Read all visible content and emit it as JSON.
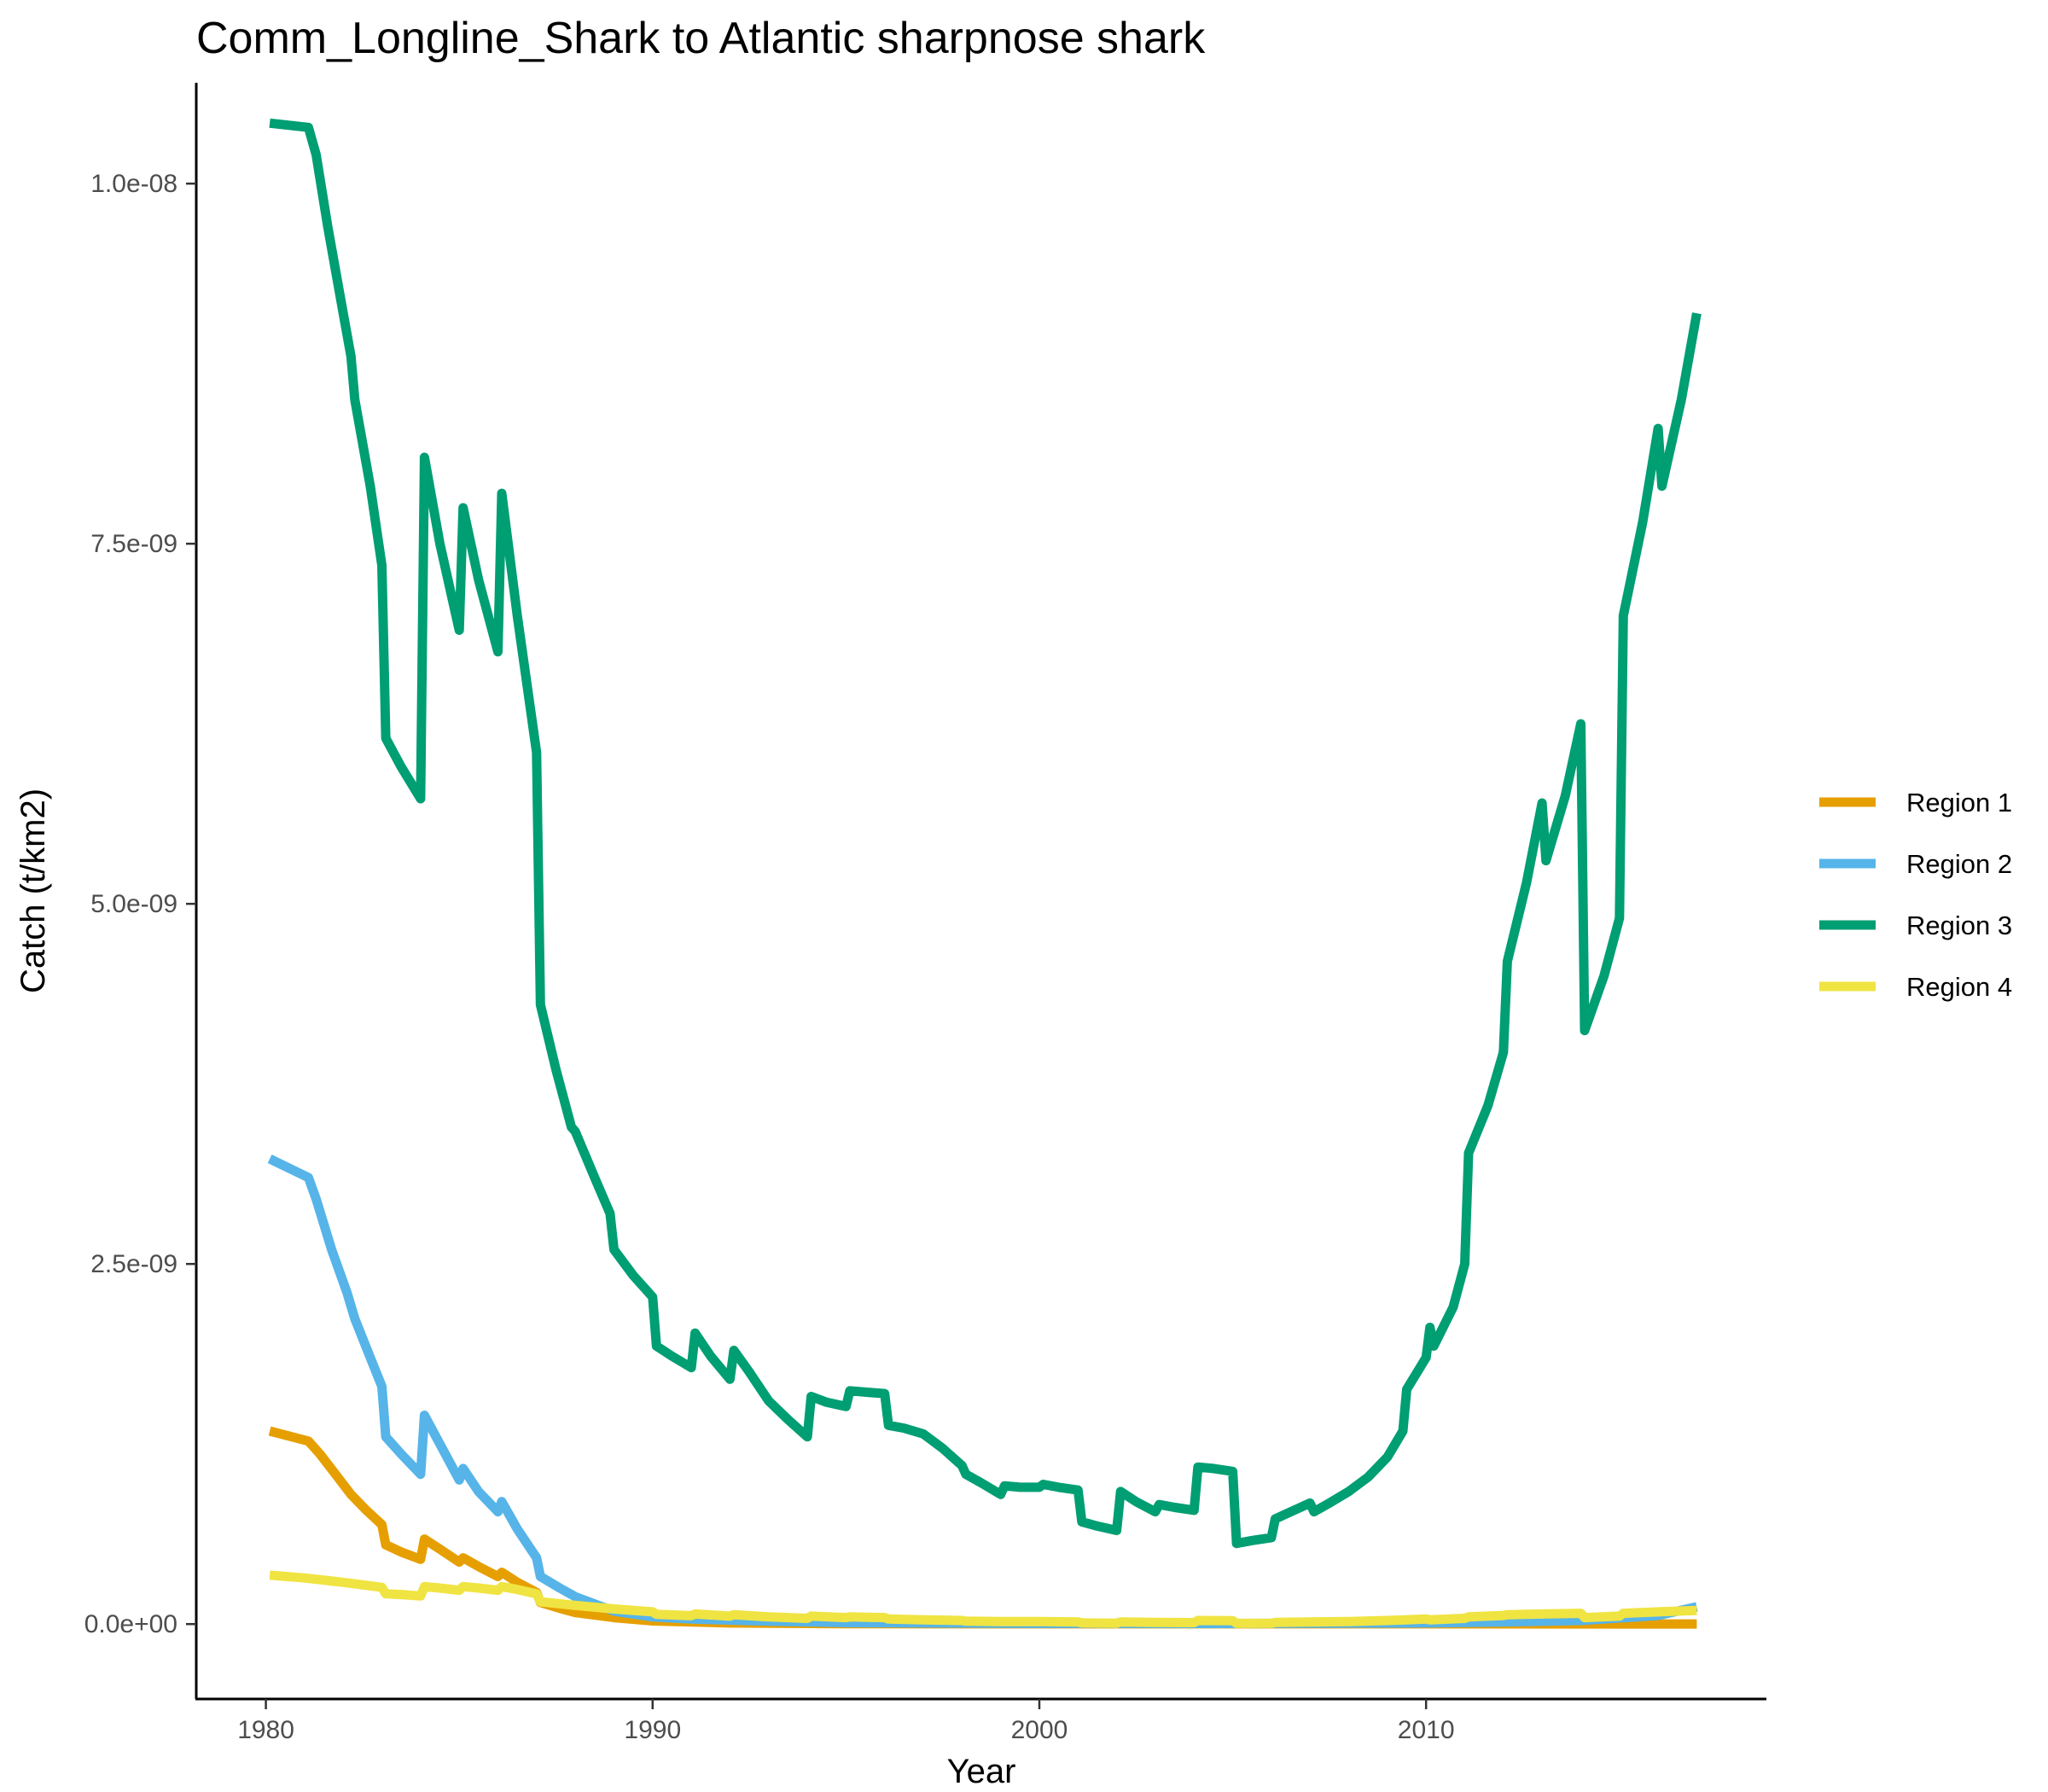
{
  "chart_data": {
    "type": "line",
    "title": "Comm_Longline_Shark to Atlantic sharpnose shark",
    "xlabel": "Year",
    "ylabel": "Catch (t/km2)",
    "xlim": [
      1978.2,
      2018.8
    ],
    "ylim": [
      -5.2e-10,
      1.07e-08
    ],
    "x_ticks": [
      1980,
      1990,
      2000,
      2010
    ],
    "x_tick_labels": [
      "1980",
      "1990",
      "2000",
      "2010"
    ],
    "y_ticks": [
      0,
      2.5e-09,
      5e-09,
      7.5e-09,
      1e-08
    ],
    "y_tick_labels": [
      "0.0e+00",
      "2.5e-09",
      "5.0e-09",
      "7.5e-09",
      "1.0e-08"
    ],
    "grid": false,
    "legend_position": "right",
    "series": [
      {
        "name": "Region 1",
        "color": "#E69F00",
        "points": [
          [
            1980.1,
            1.34e-09
          ],
          [
            1981.1,
            1.27e-09
          ],
          [
            1981.4,
            1.18e-09
          ],
          [
            1981.8,
            1.04e-09
          ],
          [
            1982.2,
            9e-10
          ],
          [
            1982.6,
            7.9e-10
          ],
          [
            1983.0,
            6.9e-10
          ],
          [
            1983.1,
            5.5e-10
          ],
          [
            1983.5,
            5e-10
          ],
          [
            1984.0,
            4.5e-10
          ],
          [
            1984.1,
            5.9e-10
          ],
          [
            1984.5,
            5.2e-10
          ],
          [
            1985.0,
            4.3e-10
          ],
          [
            1985.1,
            4.6e-10
          ],
          [
            1985.5,
            4e-10
          ],
          [
            1986.0,
            3.3e-10
          ],
          [
            1986.1,
            3.6e-10
          ],
          [
            1986.5,
            2.9e-10
          ],
          [
            1987.0,
            2.2e-10
          ],
          [
            1987.1,
            1.5e-10
          ],
          [
            1987.6,
            1.1e-10
          ],
          [
            1988.0,
            8e-11
          ],
          [
            1989.0,
            4.5e-11
          ],
          [
            1990.0,
            2.2e-11
          ],
          [
            1992.0,
            8e-12
          ],
          [
            1995.0,
            3e-12
          ],
          [
            2000.0,
            2e-12
          ],
          [
            2005.0,
            2e-12
          ],
          [
            2010.0,
            2e-12
          ],
          [
            2015.0,
            1e-12
          ],
          [
            2017.0,
            1e-12
          ]
        ]
      },
      {
        "name": "Region 2",
        "color": "#56B4E9",
        "points": [
          [
            1980.1,
            3.23e-09
          ],
          [
            1981.1,
            3.1e-09
          ],
          [
            1981.3,
            2.95e-09
          ],
          [
            1981.7,
            2.6e-09
          ],
          [
            1982.1,
            2.3e-09
          ],
          [
            1982.3,
            2.12e-09
          ],
          [
            1982.7,
            1.85e-09
          ],
          [
            1983.0,
            1.65e-09
          ],
          [
            1983.1,
            1.3e-09
          ],
          [
            1983.5,
            1.18e-09
          ],
          [
            1984.0,
            1.04e-09
          ],
          [
            1984.1,
            1.45e-09
          ],
          [
            1984.5,
            1.25e-09
          ],
          [
            1985.0,
            1e-09
          ],
          [
            1985.1,
            1.08e-09
          ],
          [
            1985.5,
            9.2e-10
          ],
          [
            1986.0,
            7.8e-10
          ],
          [
            1986.1,
            8.5e-10
          ],
          [
            1986.5,
            6.6e-10
          ],
          [
            1987.0,
            4.6e-10
          ],
          [
            1987.1,
            3.3e-10
          ],
          [
            1987.6,
            2.5e-10
          ],
          [
            1988.0,
            1.9e-10
          ],
          [
            1988.5,
            1.4e-10
          ],
          [
            1989.0,
            9e-11
          ],
          [
            1990.0,
            5e-11
          ],
          [
            1991.0,
            3.5e-11
          ],
          [
            1993.0,
            2e-11
          ],
          [
            1995.0,
            1e-11
          ],
          [
            2000.0,
            5e-12
          ],
          [
            2005.0,
            4e-12
          ],
          [
            2010.0,
            8e-12
          ],
          [
            2012.0,
            1.5e-11
          ],
          [
            2014.0,
            2.5e-11
          ],
          [
            2016.0,
            6e-11
          ],
          [
            2017.0,
            1.2e-10
          ]
        ]
      },
      {
        "name": "Region 3",
        "color": "#009E73",
        "points": [
          [
            1980.1,
            1.042e-08
          ],
          [
            1981.1,
            1.039e-08
          ],
          [
            1981.3,
            1.02e-08
          ],
          [
            1981.6,
            9.7e-09
          ],
          [
            1982.0,
            9.1e-09
          ],
          [
            1982.2,
            8.8e-09
          ],
          [
            1982.3,
            8.5e-09
          ],
          [
            1982.7,
            7.9e-09
          ],
          [
            1983.0,
            7.35e-09
          ],
          [
            1983.1,
            6.15e-09
          ],
          [
            1983.5,
            5.95e-09
          ],
          [
            1984.0,
            5.73e-09
          ],
          [
            1984.1,
            8.1e-09
          ],
          [
            1984.5,
            7.5e-09
          ],
          [
            1985.0,
            6.9e-09
          ],
          [
            1985.1,
            7.75e-09
          ],
          [
            1985.5,
            7.25e-09
          ],
          [
            1986.0,
            6.75e-09
          ],
          [
            1986.1,
            7.85e-09
          ],
          [
            1986.5,
            7e-09
          ],
          [
            1987.0,
            6.05e-09
          ],
          [
            1987.1,
            4.3e-09
          ],
          [
            1987.5,
            3.85e-09
          ],
          [
            1987.9,
            3.45e-09
          ],
          [
            1988.0,
            3.42e-09
          ],
          [
            1988.5,
            3.1e-09
          ],
          [
            1988.9,
            2.85e-09
          ],
          [
            1989.0,
            2.6e-09
          ],
          [
            1989.5,
            2.42e-09
          ],
          [
            1990.0,
            2.27e-09
          ],
          [
            1990.1,
            1.93e-09
          ],
          [
            1990.5,
            1.86e-09
          ],
          [
            1991.0,
            1.78e-09
          ],
          [
            1991.1,
            2.02e-09
          ],
          [
            1991.5,
            1.86e-09
          ],
          [
            1992.0,
            1.7e-09
          ],
          [
            1992.1,
            1.9e-09
          ],
          [
            1992.5,
            1.75e-09
          ],
          [
            1993.0,
            1.55e-09
          ],
          [
            1993.5,
            1.42e-09
          ],
          [
            1994.0,
            1.3e-09
          ],
          [
            1994.1,
            1.58e-09
          ],
          [
            1994.5,
            1.54e-09
          ],
          [
            1995.0,
            1.51e-09
          ],
          [
            1995.1,
            1.62e-09
          ],
          [
            1995.5,
            1.61e-09
          ],
          [
            1996.0,
            1.6e-09
          ],
          [
            1996.1,
            1.38e-09
          ],
          [
            1996.5,
            1.36e-09
          ],
          [
            1997.0,
            1.32e-09
          ],
          [
            1997.5,
            1.22e-09
          ],
          [
            1998.0,
            1.1e-09
          ],
          [
            1998.1,
            1.04e-09
          ],
          [
            1998.5,
            9.8e-10
          ],
          [
            1999.0,
            9e-10
          ],
          [
            1999.1,
            9.6e-10
          ],
          [
            1999.5,
            9.5e-10
          ],
          [
            2000.0,
            9.5e-10
          ],
          [
            2000.1,
            9.7e-10
          ],
          [
            2000.5,
            9.5e-10
          ],
          [
            2001.0,
            9.3e-10
          ],
          [
            2001.1,
            7.1e-10
          ],
          [
            2001.5,
            6.8e-10
          ],
          [
            2002.0,
            6.5e-10
          ],
          [
            2002.1,
            9.2e-10
          ],
          [
            2002.5,
            8.5e-10
          ],
          [
            2003.0,
            7.8e-10
          ],
          [
            2003.1,
            8.3e-10
          ],
          [
            2003.5,
            8.1e-10
          ],
          [
            2004.0,
            7.9e-10
          ],
          [
            2004.1,
            1.09e-09
          ],
          [
            2004.5,
            1.08e-09
          ],
          [
            2005.0,
            1.06e-09
          ],
          [
            2005.1,
            5.6e-10
          ],
          [
            2005.5,
            5.8e-10
          ],
          [
            2006.0,
            6e-10
          ],
          [
            2006.1,
            7.3e-10
          ],
          [
            2006.5,
            7.8e-10
          ],
          [
            2007.0,
            8.4e-10
          ],
          [
            2007.1,
            7.8e-10
          ],
          [
            2007.5,
            8.4e-10
          ],
          [
            2008.0,
            9.2e-10
          ],
          [
            2008.5,
            1.02e-09
          ],
          [
            2009.0,
            1.16e-09
          ],
          [
            2009.4,
            1.34e-09
          ],
          [
            2009.5,
            1.63e-09
          ],
          [
            2010.0,
            1.85e-09
          ],
          [
            2010.1,
            2.06e-09
          ],
          [
            2010.2,
            1.93e-09
          ],
          [
            2010.7,
            2.2e-09
          ],
          [
            2011.0,
            2.5e-09
          ],
          [
            2011.1,
            3.27e-09
          ],
          [
            2011.6,
            3.6e-09
          ],
          [
            2012.0,
            3.97e-09
          ],
          [
            2012.1,
            4.6e-09
          ],
          [
            2012.6,
            5.15e-09
          ],
          [
            2013.0,
            5.7e-09
          ],
          [
            2013.1,
            5.3e-09
          ],
          [
            2013.6,
            5.75e-09
          ],
          [
            2014.0,
            6.25e-09
          ],
          [
            2014.1,
            4.12e-09
          ],
          [
            2014.6,
            4.5e-09
          ],
          [
            2015.0,
            4.9e-09
          ],
          [
            2015.1,
            7e-09
          ],
          [
            2015.6,
            7.65e-09
          ],
          [
            2016.0,
            8.3e-09
          ],
          [
            2016.1,
            7.9e-09
          ],
          [
            2016.6,
            8.5e-09
          ],
          [
            2017.0,
            9.1e-09
          ]
        ]
      },
      {
        "name": "Region 4",
        "color": "#F0E442",
        "points": [
          [
            1980.1,
            3.4e-10
          ],
          [
            1981.0,
            3.2e-10
          ],
          [
            1982.0,
            2.9e-10
          ],
          [
            1983.0,
            2.55e-10
          ],
          [
            1983.1,
            2.1e-10
          ],
          [
            1983.5,
            2.05e-10
          ],
          [
            1984.0,
            1.95e-10
          ],
          [
            1984.1,
            2.6e-10
          ],
          [
            1984.5,
            2.5e-10
          ],
          [
            1985.0,
            2.35e-10
          ],
          [
            1985.1,
            2.6e-10
          ],
          [
            1985.5,
            2.5e-10
          ],
          [
            1986.0,
            2.35e-10
          ],
          [
            1986.1,
            2.6e-10
          ],
          [
            1986.5,
            2.4e-10
          ],
          [
            1987.0,
            2.1e-10
          ],
          [
            1987.1,
            1.55e-10
          ],
          [
            1988.0,
            1.3e-10
          ],
          [
            1989.0,
            1.05e-10
          ],
          [
            1990.0,
            8.5e-11
          ],
          [
            1990.1,
            6.8e-11
          ],
          [
            1991.0,
            5.8e-11
          ],
          [
            1991.1,
            7e-11
          ],
          [
            1992.0,
            5.5e-11
          ],
          [
            1992.1,
            6.5e-11
          ],
          [
            1993.0,
            5e-11
          ],
          [
            1994.0,
            4e-11
          ],
          [
            1994.1,
            5.5e-11
          ],
          [
            1995.0,
            4.5e-11
          ],
          [
            1995.1,
            5e-11
          ],
          [
            1996.0,
            4.5e-11
          ],
          [
            1996.1,
            3.5e-11
          ],
          [
            1997.0,
            3e-11
          ],
          [
            1998.0,
            2.5e-11
          ],
          [
            1998.1,
            2e-11
          ],
          [
            1999.0,
            1.8e-11
          ],
          [
            2000.0,
            1.8e-11
          ],
          [
            2001.0,
            1.5e-11
          ],
          [
            2001.1,
            8e-12
          ],
          [
            2002.0,
            6e-12
          ],
          [
            2002.1,
            1.5e-11
          ],
          [
            2003.0,
            1.2e-11
          ],
          [
            2004.0,
            1e-11
          ],
          [
            2004.1,
            2.5e-11
          ],
          [
            2005.0,
            2.3e-11
          ],
          [
            2005.1,
            5e-12
          ],
          [
            2006.0,
            6e-12
          ],
          [
            2006.1,
            1.2e-11
          ],
          [
            2007.0,
            1.5e-11
          ],
          [
            2008.0,
            1.8e-11
          ],
          [
            2009.0,
            2.5e-11
          ],
          [
            2009.5,
            3e-11
          ],
          [
            2010.0,
            3.5e-11
          ],
          [
            2010.1,
            3e-11
          ],
          [
            2011.0,
            4e-11
          ],
          [
            2011.1,
            5e-11
          ],
          [
            2012.0,
            6e-11
          ],
          [
            2012.1,
            6.5e-11
          ],
          [
            2013.0,
            7e-11
          ],
          [
            2014.0,
            7.5e-11
          ],
          [
            2014.1,
            4.5e-11
          ],
          [
            2015.0,
            5.5e-11
          ],
          [
            2015.1,
            7.5e-11
          ],
          [
            2016.0,
            8.5e-11
          ],
          [
            2017.0,
            9.5e-11
          ]
        ]
      }
    ]
  }
}
